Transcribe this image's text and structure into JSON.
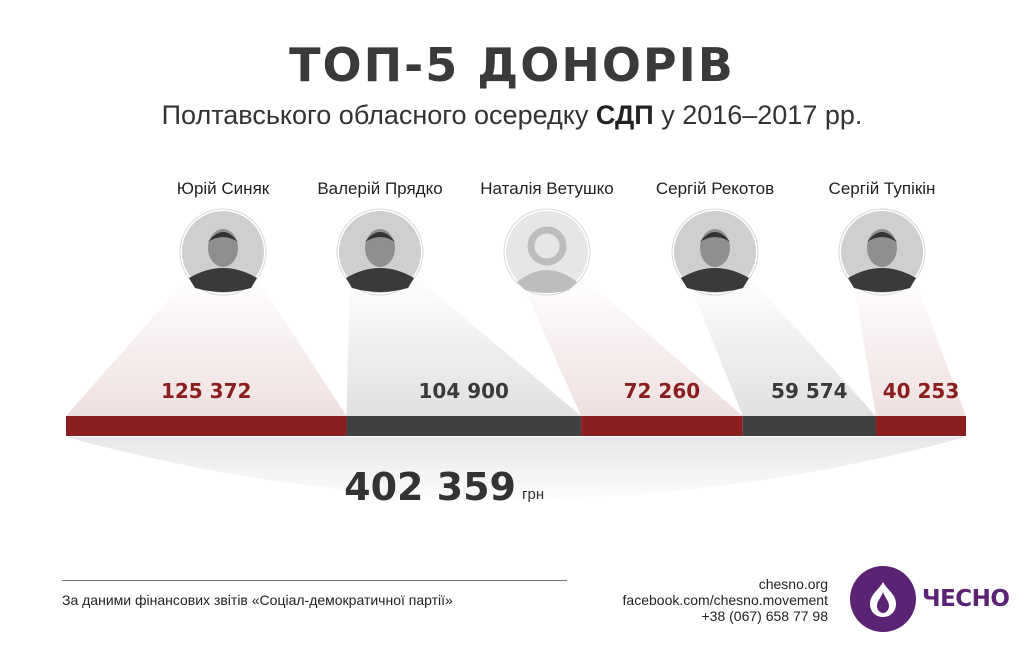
{
  "header": {
    "title": "ТОП-5 ДОНОРІВ",
    "subtitle_pre": "Полтавського обласного осередку ",
    "subtitle_bold": "СДП",
    "subtitle_post": " у 2016–2017 рр."
  },
  "chart_data": {
    "type": "bar",
    "orientation": "stacked-horizontal",
    "categories": [
      "Юрій Синяк",
      "Валерій Прядко",
      "Наталія Ветушко",
      "Сергій Рекотов",
      "Сергій Тупікін"
    ],
    "values": [
      125372,
      104900,
      72260,
      59574,
      40253
    ],
    "value_labels": [
      "125 372",
      "104 900",
      "72 260",
      "59 574",
      "40 253"
    ],
    "total": 402359,
    "total_label": "402 359",
    "total_unit": "грн",
    "colors": [
      "#8b1f1f",
      "#404040",
      "#8b1f1f",
      "#404040",
      "#8b1f1f"
    ]
  },
  "photos": [
    "photo",
    "photo",
    "placeholder",
    "photo",
    "photo"
  ],
  "footer": {
    "source": "За даними фінансових звітів «Соціал-демократичної партії»",
    "contacts": [
      "chesno.org",
      "facebook.com/chesno.movement",
      "+38 (067) 658 77 98"
    ],
    "logo_text": "ЧЕСНО"
  }
}
